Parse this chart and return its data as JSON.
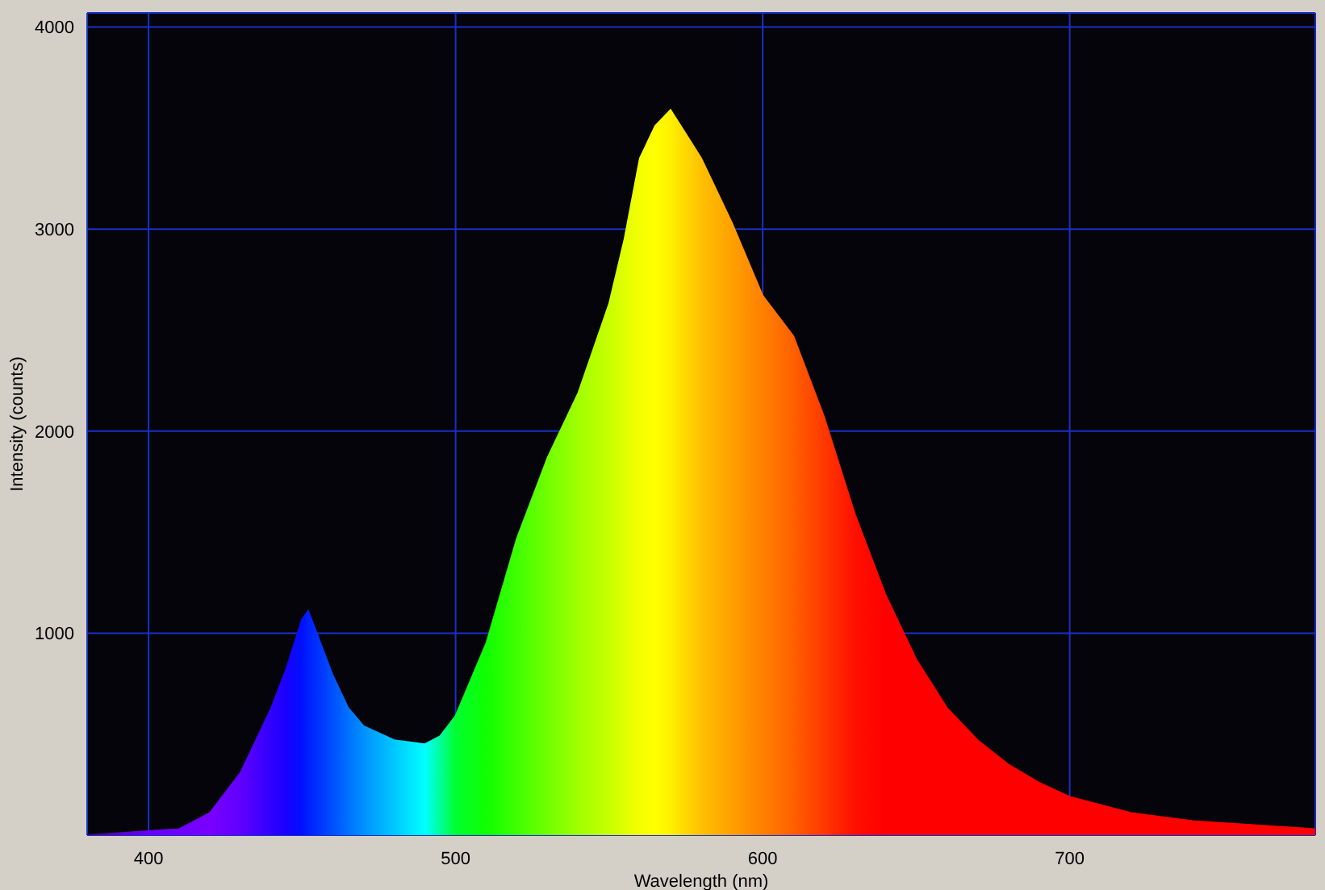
{
  "chart_data": {
    "type": "area",
    "xlabel": "Wavelength (nm)",
    "ylabel": "Intensity (counts)",
    "x": [
      380,
      400,
      410,
      420,
      430,
      440,
      445,
      450,
      452,
      455,
      460,
      465,
      470,
      480,
      490,
      495,
      500,
      510,
      520,
      530,
      540,
      550,
      555,
      560,
      565,
      570,
      575,
      580,
      590,
      600,
      610,
      620,
      630,
      640,
      650,
      660,
      670,
      680,
      690,
      700,
      720,
      740,
      760,
      780
    ],
    "values": [
      0,
      20,
      30,
      110,
      310,
      630,
      830,
      1070,
      1110,
      990,
      790,
      630,
      540,
      470,
      450,
      490,
      590,
      950,
      1470,
      1870,
      2190,
      2630,
      2950,
      3350,
      3510,
      3590,
      3470,
      3350,
      3030,
      2670,
      2470,
      2070,
      1590,
      1190,
      870,
      630,
      470,
      350,
      260,
      190,
      110,
      70,
      50,
      30
    ],
    "colors": [
      "#4b0082",
      "#6a00ff",
      "#7000ff",
      "#7a00ff",
      "#6000ff",
      "#3000ff",
      "#1800ff",
      "#0010ff",
      "#0020ff",
      "#0030ff",
      "#0050ff",
      "#0070ff",
      "#0090ff",
      "#00c8ff",
      "#00ffff",
      "#00ff9a",
      "#00ff30",
      "#10ff00",
      "#40ff00",
      "#70ff00",
      "#a0ff00",
      "#c8ff00",
      "#e0ff00",
      "#f4ff00",
      "#ffff00",
      "#fff000",
      "#ffd800",
      "#ffc000",
      "#ffa000",
      "#ff8000",
      "#ff6000",
      "#ff3800",
      "#ff1000",
      "#ff0000",
      "#ff0000",
      "#ff0000",
      "#ff0000",
      "#ff0000",
      "#ff0000",
      "#ff0000",
      "#ff0000",
      "#ff0000",
      "#ff0000",
      "#ff0000"
    ],
    "xlim": [
      380,
      780
    ],
    "xticks": [
      400,
      500,
      600,
      700
    ],
    "ylim": [
      0,
      4070
    ],
    "yticks": [
      1000,
      2000,
      3000,
      4000
    ],
    "grid": true
  }
}
